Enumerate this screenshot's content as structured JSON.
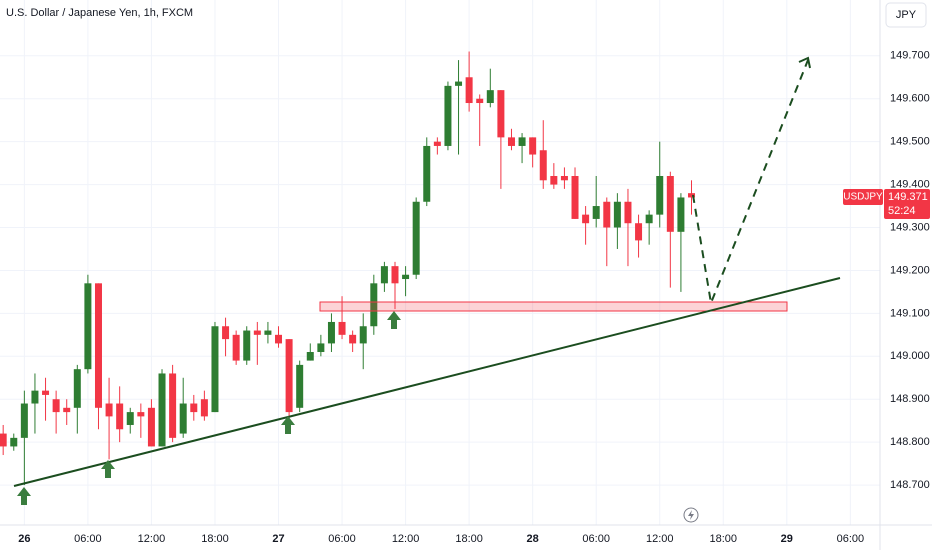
{
  "chart_data": {
    "type": "candlestick",
    "title": "U.S. Dollar / Japanese Yen, 1h, FXCM",
    "currency_button": "JPY",
    "symbol_label": "USDJPY",
    "last_price": 149.371,
    "countdown": "52:24",
    "up_color": "#2e7d32",
    "down_color": "#f23645",
    "grid": true,
    "x": [
      -2,
      -1,
      0,
      1,
      2,
      3,
      4,
      5,
      6,
      7,
      8,
      9,
      10,
      11,
      12,
      13,
      14,
      15,
      16,
      17,
      18,
      19,
      20,
      21,
      22,
      23,
      24,
      25,
      26,
      27,
      28,
      29,
      30,
      31,
      32,
      33,
      34,
      35,
      36,
      37,
      38,
      39,
      40,
      41,
      42,
      43,
      44,
      45,
      46,
      47,
      48,
      49,
      50,
      51,
      52,
      53,
      54,
      55,
      56,
      57,
      58,
      59,
      60,
      61,
      62,
      63
    ],
    "open": [
      148.82,
      148.79,
      148.81,
      148.89,
      148.92,
      148.9,
      148.88,
      148.88,
      148.97,
      149.17,
      148.89,
      148.89,
      148.84,
      148.87,
      148.88,
      148.79,
      148.96,
      148.82,
      148.89,
      148.9,
      148.87,
      149.07,
      149.05,
      148.99,
      149.06,
      149.05,
      149.05,
      149.04,
      148.88,
      148.99,
      149.01,
      149.03,
      149.08,
      149.05,
      149.03,
      149.07,
      149.17,
      149.21,
      149.18,
      149.19,
      149.36,
      149.5,
      149.49,
      149.63,
      149.65,
      149.6,
      149.59,
      149.62,
      149.51,
      149.49,
      149.51,
      149.48,
      149.42,
      149.42,
      149.42,
      149.33,
      149.32,
      149.36,
      149.3,
      149.36,
      149.31,
      149.31,
      149.33,
      149.42,
      149.29,
      149.38
    ],
    "high": [
      148.84,
      148.82,
      148.92,
      148.96,
      148.95,
      148.92,
      148.9,
      148.98,
      149.19,
      149.17,
      148.95,
      148.93,
      148.88,
      148.89,
      148.9,
      148.97,
      148.98,
      148.95,
      148.91,
      148.92,
      149.08,
      149.09,
      149.06,
      149.07,
      149.08,
      149.08,
      149.07,
      149.04,
      148.99,
      149.03,
      149.05,
      149.1,
      149.14,
      149.06,
      149.1,
      149.19,
      149.22,
      149.22,
      149.21,
      149.37,
      149.51,
      149.51,
      149.64,
      149.69,
      149.71,
      149.61,
      149.67,
      149.62,
      149.53,
      149.52,
      149.51,
      149.55,
      149.45,
      149.44,
      149.44,
      149.35,
      149.42,
      149.37,
      149.38,
      149.39,
      149.33,
      149.34,
      149.5,
      149.43,
      149.38,
      149.41
    ],
    "low": [
      148.77,
      148.78,
      148.7,
      148.82,
      148.85,
      148.82,
      148.84,
      148.82,
      148.96,
      148.83,
      148.76,
      148.8,
      148.82,
      148.81,
      148.79,
      148.79,
      148.8,
      148.81,
      148.85,
      148.85,
      148.87,
      149.0,
      148.98,
      148.98,
      148.98,
      149.03,
      149.02,
      148.85,
      148.87,
      148.99,
      149.0,
      149.01,
      149.04,
      149.01,
      148.97,
      149.05,
      149.15,
      149.11,
      149.14,
      149.18,
      149.35,
      149.47,
      149.48,
      149.47,
      149.57,
      149.49,
      149.58,
      149.39,
      149.48,
      149.45,
      149.44,
      149.39,
      149.39,
      149.39,
      149.32,
      149.26,
      149.3,
      149.21,
      149.25,
      149.21,
      149.23,
      149.26,
      149.3,
      149.16,
      149.15,
      149.33
    ],
    "close": [
      148.79,
      148.81,
      148.89,
      148.92,
      148.91,
      148.87,
      148.87,
      148.97,
      149.17,
      148.88,
      148.86,
      148.83,
      148.87,
      148.86,
      148.79,
      148.96,
      148.81,
      148.89,
      148.87,
      148.86,
      149.07,
      149.04,
      148.99,
      149.06,
      149.05,
      149.06,
      149.03,
      148.87,
      148.98,
      149.01,
      149.03,
      149.08,
      149.05,
      149.03,
      149.07,
      149.17,
      149.21,
      149.17,
      149.19,
      149.36,
      149.49,
      149.49,
      149.63,
      149.64,
      149.59,
      149.59,
      149.62,
      149.51,
      149.49,
      149.51,
      149.47,
      149.41,
      149.4,
      149.41,
      149.32,
      149.31,
      149.35,
      149.3,
      149.36,
      149.31,
      149.27,
      149.33,
      149.42,
      149.29,
      149.37,
      149.37
    ],
    "xlim": [
      -2.3,
      80.8
    ],
    "xticks": [
      {
        "value": 0,
        "label": "26"
      },
      {
        "value": 6,
        "label": "06:00"
      },
      {
        "value": 12,
        "label": "12:00"
      },
      {
        "value": 18,
        "label": "18:00"
      },
      {
        "value": 24,
        "label": "27"
      },
      {
        "value": 30,
        "label": "06:00"
      },
      {
        "value": 36,
        "label": "12:00"
      },
      {
        "value": 42,
        "label": "18:00"
      },
      {
        "value": 48,
        "label": "28"
      },
      {
        "value": 54,
        "label": "06:00"
      },
      {
        "value": 60,
        "label": "12:00"
      },
      {
        "value": 66,
        "label": "18:00"
      },
      {
        "value": 72,
        "label": "29"
      },
      {
        "value": 78,
        "label": "06:00"
      }
    ],
    "ylim": [
      148.607,
      149.83
    ],
    "yticks": [
      {
        "value": 148.7,
        "label": "148.700"
      },
      {
        "value": 148.8,
        "label": "148.800"
      },
      {
        "value": 148.9,
        "label": "148.900"
      },
      {
        "value": 149.0,
        "label": "149.000"
      },
      {
        "value": 149.1,
        "label": "149.100"
      },
      {
        "value": 149.2,
        "label": "149.200"
      },
      {
        "value": 149.3,
        "label": "149.300"
      },
      {
        "value": 149.4,
        "label": "149.400"
      },
      {
        "value": 149.5,
        "label": "149.500"
      },
      {
        "value": 149.6,
        "label": "149.600"
      },
      {
        "value": 149.7,
        "label": "149.700"
      }
    ]
  }
}
